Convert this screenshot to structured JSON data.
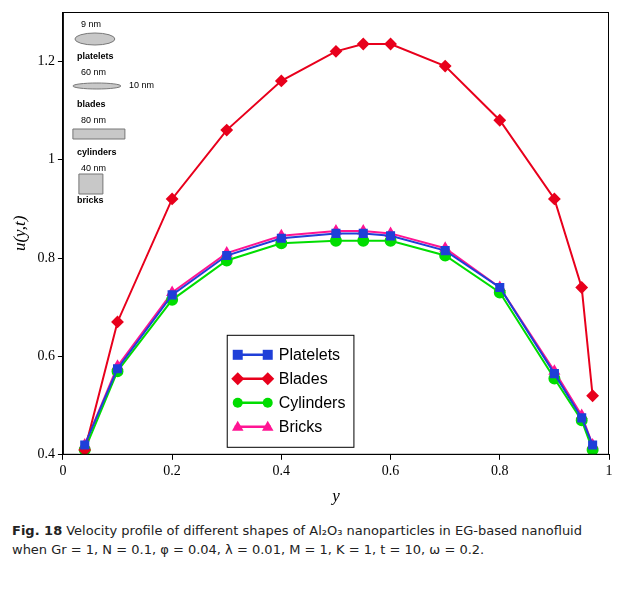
{
  "chart_data": {
    "type": "line",
    "x_label": "y",
    "y_label": "u(y,t)",
    "xlim": [
      0,
      1
    ],
    "xticks": [
      0,
      0.2,
      0.4,
      0.6,
      0.8,
      1
    ],
    "ylim": [
      0.4,
      1.3
    ],
    "yticks": [
      0.4,
      0.6,
      0.8,
      1,
      1.2
    ],
    "grid": false,
    "legend": "bottom",
    "x": [
      0.04,
      0.1,
      0.2,
      0.3,
      0.4,
      0.5,
      0.55,
      0.6,
      0.7,
      0.8,
      0.9,
      0.95,
      0.97
    ],
    "series": [
      {
        "name": "Platelets",
        "color": "#1f3fd8",
        "marker": "square",
        "line_style": "solid",
        "values": [
          0.42,
          0.575,
          0.725,
          0.805,
          0.84,
          0.85,
          0.85,
          0.845,
          0.815,
          0.74,
          0.565,
          0.475,
          0.42
        ]
      },
      {
        "name": "Blades",
        "color": "#e8001c",
        "marker": "diamond",
        "line_style": "solid",
        "values": [
          0.41,
          0.67,
          0.92,
          1.06,
          1.16,
          1.22,
          1.235,
          1.235,
          1.19,
          1.08,
          0.92,
          0.74,
          0.52
        ]
      },
      {
        "name": "Cylinders",
        "color": "#00dd00",
        "marker": "circle",
        "line_style": "solid",
        "values": [
          0.41,
          0.57,
          0.715,
          0.795,
          0.83,
          0.835,
          0.835,
          0.835,
          0.805,
          0.73,
          0.555,
          0.47,
          0.41
        ]
      },
      {
        "name": "Bricks",
        "color": "#ff1493",
        "marker": "triangle",
        "line_style": "solid",
        "values": [
          0.42,
          0.58,
          0.73,
          0.81,
          0.845,
          0.855,
          0.855,
          0.85,
          0.82,
          0.74,
          0.57,
          0.48,
          0.42
        ]
      }
    ],
    "annotations": [
      [
        "9 nm",
        "platelets"
      ],
      [
        "60 nm",
        "10 nm",
        "blades"
      ],
      [
        "80 nm",
        "cylinders"
      ],
      [
        "40 nm",
        "bricks"
      ]
    ],
    "caption": {
      "label": "Fig. 18",
      "text": "Velocity profile of different shapes of Al₂O₃ nanoparticles in EG-based nanofluid when Gr = 1, N = 0.1, φ = 0.04, λ = 0.01, M = 1, K = 1, t = 10, ω = 0.2."
    }
  }
}
